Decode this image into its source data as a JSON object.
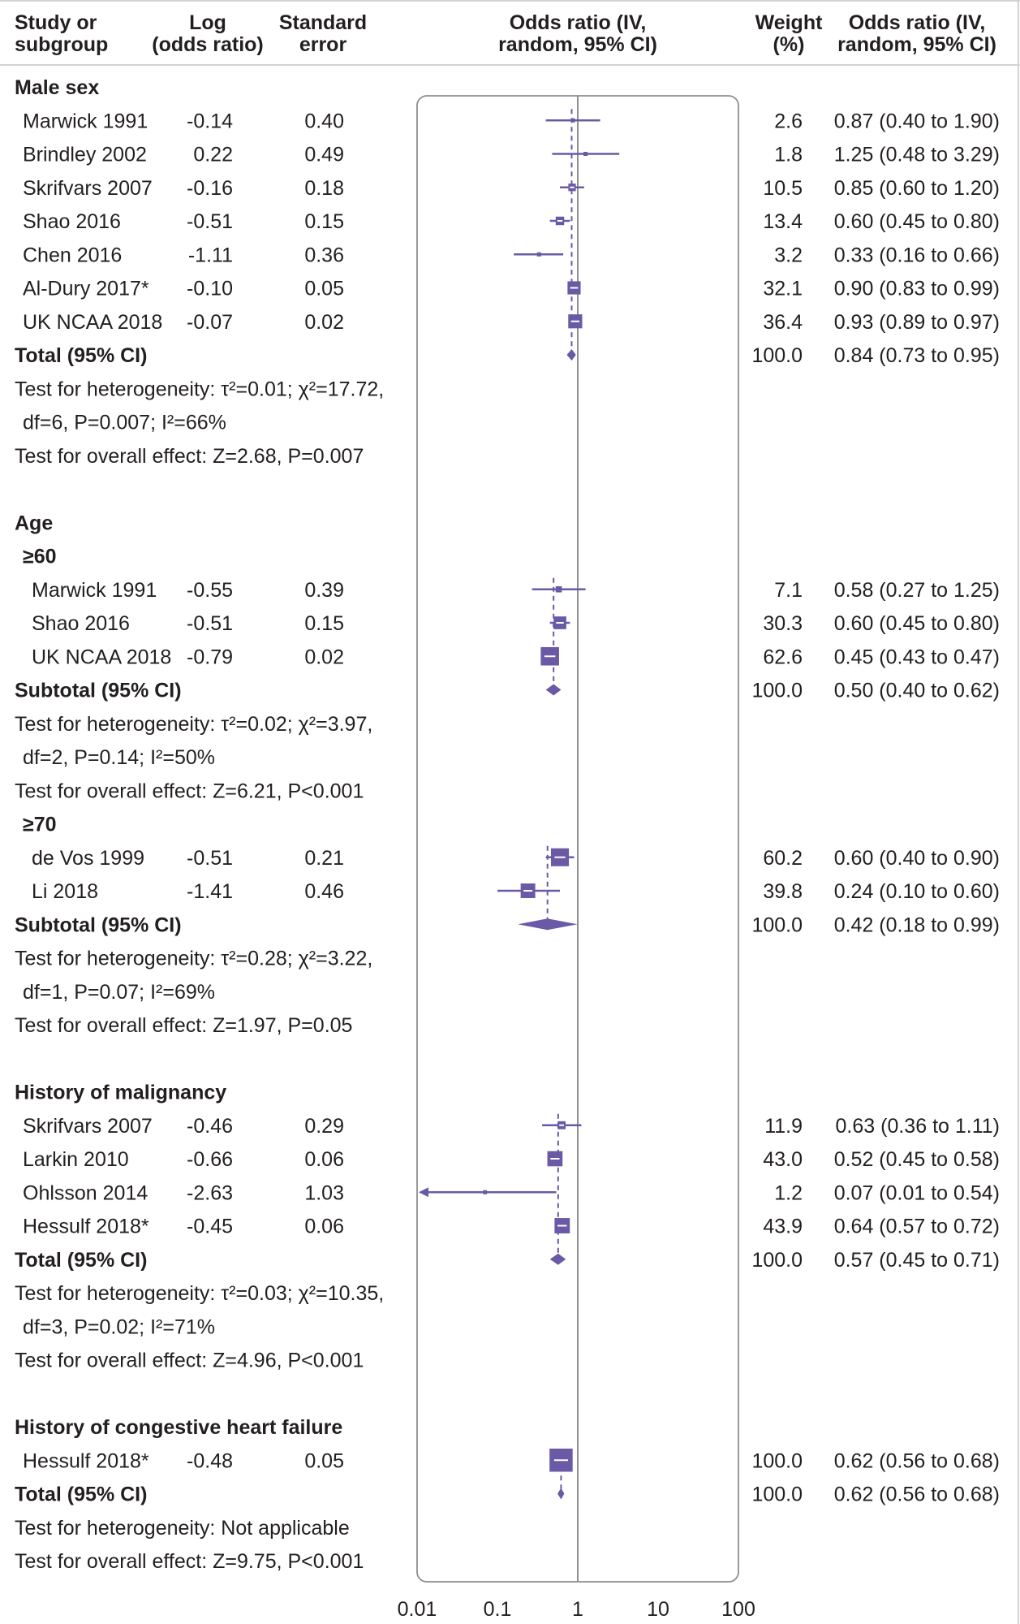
{
  "chart_data": {
    "type": "forest",
    "x_scale": "log",
    "x_ticks": [
      "0.01",
      "0.1",
      "1",
      "10",
      "100"
    ],
    "x_tick_values": [
      0.01,
      0.1,
      1,
      10,
      100
    ],
    "colors": {
      "marker": "#6a5aa6",
      "text": "#231f20",
      "axis": "#8e8e8e",
      "rule": "#d2d2d2"
    },
    "headers": {
      "study": [
        "Study or",
        "subgroup"
      ],
      "log": [
        "Log",
        "(odds ratio)"
      ],
      "se": [
        "Standard",
        "error"
      ],
      "plot": [
        "Odds ratio (IV,",
        "random, 95% CI)"
      ],
      "weight": [
        "Weight",
        "(%)"
      ],
      "or": [
        "Odds ratio (IV,",
        "random, 95% CI)"
      ]
    },
    "rows": [
      {
        "kind": "group",
        "label": "Male sex"
      },
      {
        "kind": "study",
        "label": "Marwick 1991",
        "log": "-0.14",
        "se": "0.40",
        "weight": "2.6",
        "or_text": "0.87 (0.40 to 1.90)",
        "or": 0.87,
        "lo": 0.4,
        "hi": 1.9
      },
      {
        "kind": "study",
        "label": "Brindley 2002",
        "log": "0.22",
        "se": "0.49",
        "weight": "1.8",
        "or_text": "1.25 (0.48 to 3.29)",
        "or": 1.25,
        "lo": 0.48,
        "hi": 3.29
      },
      {
        "kind": "study",
        "label": "Skrifvars 2007",
        "log": "-0.16",
        "se": "0.18",
        "weight": "10.5",
        "or_text": "0.85 (0.60 to 1.20)",
        "or": 0.85,
        "lo": 0.6,
        "hi": 1.2
      },
      {
        "kind": "study",
        "label": "Shao 2016",
        "log": "-0.51",
        "se": "0.15",
        "weight": "13.4",
        "or_text": "0.60 (0.45 to 0.80)",
        "or": 0.6,
        "lo": 0.45,
        "hi": 0.8
      },
      {
        "kind": "study",
        "label": "Chen 2016",
        "log": "-1.11",
        "se": "0.36",
        "weight": "3.2",
        "or_text": "0.33 (0.16 to 0.66)",
        "or": 0.33,
        "lo": 0.16,
        "hi": 0.66
      },
      {
        "kind": "study",
        "label": "Al-Dury 2017*",
        "log": "-0.10",
        "se": "0.05",
        "weight": "32.1",
        "or_text": "0.90 (0.83 to 0.99)",
        "or": 0.9,
        "lo": 0.83,
        "hi": 0.99
      },
      {
        "kind": "study",
        "label": "UK NCAA 2018",
        "log": "-0.07",
        "se": "0.02",
        "weight": "36.4",
        "or_text": "0.93 (0.89 to 0.97)",
        "or": 0.93,
        "lo": 0.89,
        "hi": 0.97
      },
      {
        "kind": "total",
        "label": "Total (95% CI)",
        "weight": "100.0",
        "or_text": "0.84 (0.73 to 0.95)",
        "or": 0.84,
        "lo": 0.73,
        "hi": 0.95
      },
      {
        "kind": "note",
        "label": "Test for heterogeneity: τ²=0.01; χ²=17.72,"
      },
      {
        "kind": "note",
        "label": "df=6, P=0.007; I²=66%",
        "indent": true
      },
      {
        "kind": "note",
        "label": "Test for overall effect: Z=2.68, P=0.007"
      },
      {
        "kind": "blank"
      },
      {
        "kind": "group",
        "label": "Age"
      },
      {
        "kind": "subgroup",
        "label": "≥60"
      },
      {
        "kind": "study",
        "label": "Marwick 1991",
        "log": "-0.55",
        "se": "0.39",
        "weight": "7.1",
        "or_text": "0.58 (0.27 to 1.25)",
        "or": 0.58,
        "lo": 0.27,
        "hi": 1.25,
        "deep": true
      },
      {
        "kind": "study",
        "label": "Shao 2016",
        "log": "-0.51",
        "se": "0.15",
        "weight": "30.3",
        "or_text": "0.60 (0.45 to 0.80)",
        "or": 0.6,
        "lo": 0.45,
        "hi": 0.8,
        "deep": true
      },
      {
        "kind": "study",
        "label": "UK NCAA 2018",
        "log": "-0.79",
        "se": "0.02",
        "weight": "62.6",
        "or_text": "0.45 (0.43 to 0.47)",
        "or": 0.45,
        "lo": 0.43,
        "hi": 0.47,
        "deep": true
      },
      {
        "kind": "total",
        "label": "Subtotal (95% CI)",
        "weight": "100.0",
        "or_text": "0.50 (0.40 to 0.62)",
        "or": 0.5,
        "lo": 0.4,
        "hi": 0.62
      },
      {
        "kind": "note",
        "label": "Test for heterogeneity: τ²=0.02; χ²=3.97,"
      },
      {
        "kind": "note",
        "label": "df=2, P=0.14; I²=50%",
        "indent": true
      },
      {
        "kind": "note",
        "label": "Test for overall effect: Z=6.21, P<0.001"
      },
      {
        "kind": "subgroup",
        "label": "≥70"
      },
      {
        "kind": "study",
        "label": "de Vos 1999",
        "log": "-0.51",
        "se": "0.21",
        "weight": "60.2",
        "or_text": "0.60 (0.40 to 0.90)",
        "or": 0.6,
        "lo": 0.4,
        "hi": 0.9,
        "deep": true
      },
      {
        "kind": "study",
        "label": "Li 2018",
        "log": "-1.41",
        "se": "0.46",
        "weight": "39.8",
        "or_text": "0.24 (0.10 to 0.60)",
        "or": 0.24,
        "lo": 0.1,
        "hi": 0.6,
        "deep": true
      },
      {
        "kind": "total",
        "label": "Subtotal (95% CI)",
        "weight": "100.0",
        "or_text": "0.42 (0.18 to 0.99)",
        "or": 0.42,
        "lo": 0.18,
        "hi": 0.99
      },
      {
        "kind": "note",
        "label": "Test for heterogeneity: τ²=0.28; χ²=3.22,"
      },
      {
        "kind": "note",
        "label": "df=1, P=0.07; I²=69%",
        "indent": true
      },
      {
        "kind": "note",
        "label": "Test for overall effect: Z=1.97, P=0.05"
      },
      {
        "kind": "blank"
      },
      {
        "kind": "group",
        "label": "History of malignancy"
      },
      {
        "kind": "study",
        "label": "Skrifvars 2007",
        "log": "-0.46",
        "se": "0.29",
        "weight": "11.9",
        "or_text": "0.63 (0.36 to 1.11)",
        "or": 0.63,
        "lo": 0.36,
        "hi": 1.11
      },
      {
        "kind": "study",
        "label": "Larkin 2010",
        "log": "-0.66",
        "se": "0.06",
        "weight": "43.0",
        "or_text": "0.52 (0.45 to 0.58)",
        "or": 0.52,
        "lo": 0.45,
        "hi": 0.58
      },
      {
        "kind": "study",
        "label": "Ohlsson 2014",
        "log": "-2.63",
        "se": "1.03",
        "weight": "1.2",
        "or_text": "0.07 (0.01 to 0.54)",
        "or": 0.07,
        "lo": 0.01,
        "hi": 0.54,
        "arrow_left": true
      },
      {
        "kind": "study",
        "label": "Hessulf 2018*",
        "log": "-0.45",
        "se": "0.06",
        "weight": "43.9",
        "or_text": "0.64 (0.57 to 0.72)",
        "or": 0.64,
        "lo": 0.57,
        "hi": 0.72
      },
      {
        "kind": "total",
        "label": "Total (95% CI)",
        "weight": "100.0",
        "or_text": "0.57 (0.45 to 0.71)",
        "or": 0.57,
        "lo": 0.45,
        "hi": 0.71
      },
      {
        "kind": "note",
        "label": "Test for heterogeneity: τ²=0.03; χ²=10.35,"
      },
      {
        "kind": "note",
        "label": "df=3, P=0.02; I²=71%",
        "indent": true
      },
      {
        "kind": "note",
        "label": "Test for overall effect: Z=4.96, P<0.001"
      },
      {
        "kind": "blank"
      },
      {
        "kind": "group",
        "label": "History of congestive heart failure"
      },
      {
        "kind": "study",
        "label": "Hessulf 2018*",
        "log": "-0.48",
        "se": "0.05",
        "weight": "100.0",
        "or_text": "0.62 (0.56 to 0.68)",
        "or": 0.62,
        "lo": 0.56,
        "hi": 0.68
      },
      {
        "kind": "total",
        "label": "Total (95% CI)",
        "weight": "100.0",
        "or_text": "0.62 (0.56 to 0.68)",
        "or": 0.62,
        "lo": 0.56,
        "hi": 0.68
      },
      {
        "kind": "note",
        "label": "Test for heterogeneity: Not applicable"
      },
      {
        "kind": "note",
        "label": "Test for overall effect: Z=9.75, P<0.001"
      }
    ]
  }
}
